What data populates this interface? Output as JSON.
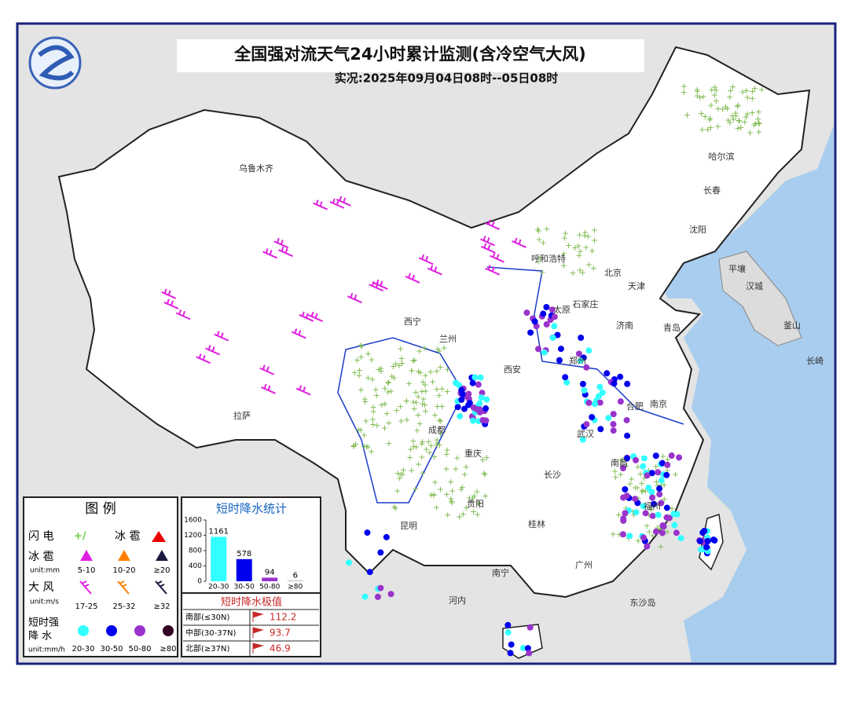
{
  "header": {
    "title": "全国强对流天气24小时累计监测(含冷空气大风)",
    "subtitle": "实况:2025年09月04日08时--05日08时"
  },
  "cities": [
    "乌鲁木齐",
    "哈尔滨",
    "长春",
    "沈阳",
    "呼和浩特",
    "北京",
    "天津",
    "太原",
    "石家庄",
    "济南",
    "青岛",
    "西宁",
    "兰州",
    "西安",
    "郑州",
    "合肥",
    "南京",
    "武汉",
    "成都",
    "重庆",
    "拉萨",
    "长沙",
    "南昌",
    "贵阳",
    "昆明",
    "桂林",
    "南宁",
    "广州",
    "福州",
    "河内",
    "东沙岛",
    "平壤",
    "汉城",
    "釜山",
    "长崎"
  ],
  "legend": {
    "title": "图 例",
    "lightning": "闪 电",
    "hail_mark": "冰 雹",
    "hail": "冰 雹",
    "hail_unit": "unit:mm",
    "hail_levels": [
      "5-10",
      "10-20",
      "≥20"
    ],
    "wind": "大 风",
    "wind_unit": "unit:m/s",
    "wind_levels": [
      "17-25",
      "25-32",
      "≥32"
    ],
    "rain_1": "短时强",
    "rain_2": "降 水",
    "rain_unit": "unit:mm/h",
    "rain_levels": [
      "20-30",
      "30-50",
      "50-80",
      "≥80"
    ]
  },
  "chart_data": {
    "type": "bar",
    "title": "短时降水统计",
    "categories": [
      "20-30",
      "30-50",
      "50-80",
      "≥80"
    ],
    "values": [
      1161,
      578,
      94,
      6
    ],
    "colors": [
      "#33ffff",
      "#0000ee",
      "#9933cc",
      "#330022"
    ],
    "ylim": [
      0,
      1600
    ],
    "yticks": [
      0,
      400,
      800,
      1200,
      1600
    ]
  },
  "extremes": {
    "title": "短时降水极值",
    "rows": [
      [
        "南部(≤30N)",
        "112.2"
      ],
      [
        "中部(30-37N)",
        "93.7"
      ],
      [
        "北部(≥37N)",
        "46.9"
      ]
    ]
  }
}
